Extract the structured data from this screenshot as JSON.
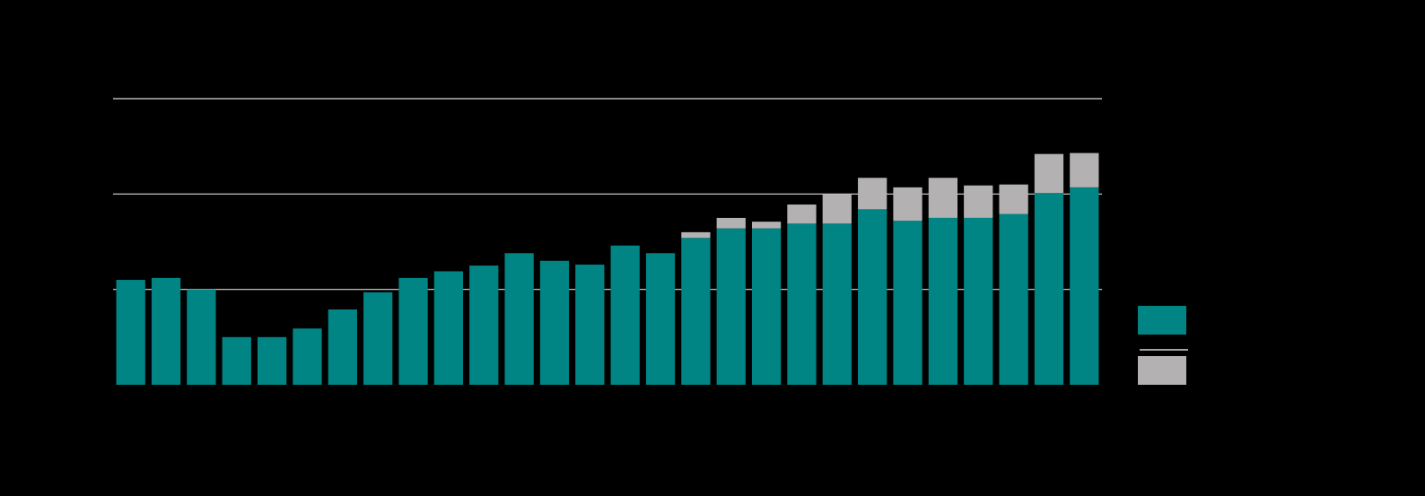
{
  "colors": {
    "background": "#000000",
    "primary": "#008484",
    "secondary": "#b3b1b1",
    "gridline": "#d9d9d9"
  },
  "chart_data": {
    "type": "bar",
    "stacked": true,
    "categories": [
      "",
      "",
      "",
      "",
      "",
      "",
      "",
      "",
      "",
      "",
      "",
      "",
      "",
      "",
      "",
      "",
      "",
      "",
      "",
      "",
      "",
      "",
      "",
      "",
      "",
      "",
      "",
      ""
    ],
    "series": [
      {
        "color": "#008484",
        "values": [
          1.1,
          1.12,
          1.0,
          0.5,
          0.5,
          0.59,
          0.79,
          0.97,
          1.12,
          1.19,
          1.25,
          1.38,
          1.3,
          1.26,
          1.46,
          1.38,
          1.54,
          1.64,
          1.64,
          1.69,
          1.69,
          1.84,
          1.72,
          1.75,
          1.75,
          1.79,
          2.01,
          2.07
        ]
      },
      {
        "color": "#b3b1b1",
        "values": [
          0,
          0,
          0,
          0,
          0,
          0,
          0,
          0,
          0,
          0,
          0,
          0,
          0,
          0,
          0,
          0,
          0.06,
          0.11,
          0.07,
          0.2,
          0.31,
          0.33,
          0.35,
          0.42,
          0.34,
          0.31,
          0.41,
          0.36
        ]
      }
    ],
    "ylim": [
      0,
      3
    ],
    "yticks": [
      1,
      2,
      3
    ],
    "grid": true,
    "legend_position": "right"
  }
}
